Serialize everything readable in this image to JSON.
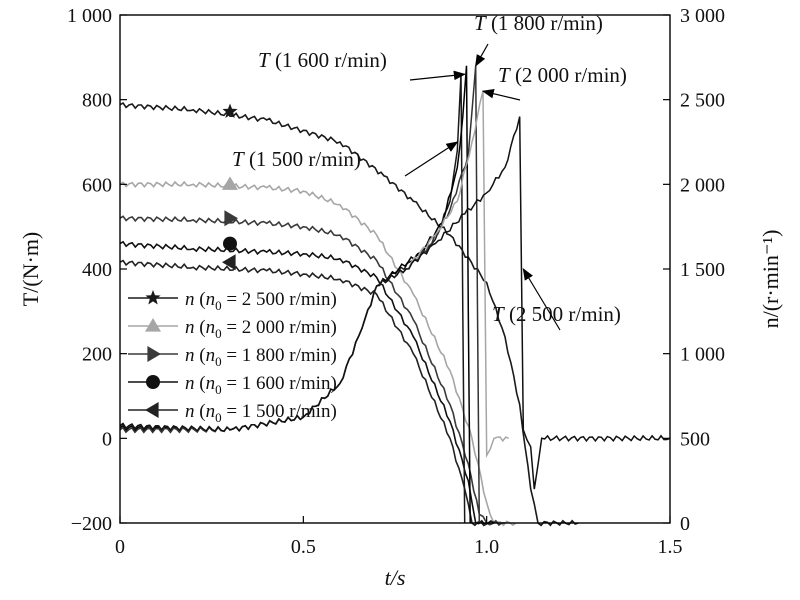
{
  "chart_data": {
    "type": "line",
    "xlabel": "t/s",
    "ylabel_left": "T/(N·m)",
    "ylabel_right": "n/(r·min⁻¹)",
    "xlim": [
      0,
      1.5
    ],
    "ylim_left": [
      -200,
      1000
    ],
    "ylim_right": [
      0,
      3000
    ],
    "x_ticks": [
      {
        "v": 0,
        "label": "0"
      },
      {
        "v": 0.5,
        "label": "0.5"
      },
      {
        "v": 1.0,
        "label": "1.0"
      },
      {
        "v": 1.5,
        "label": "1.5"
      }
    ],
    "y_left_ticks": [
      {
        "v": -200,
        "label": "−200"
      },
      {
        "v": 0,
        "label": "0"
      },
      {
        "v": 200,
        "label": "200"
      },
      {
        "v": 400,
        "label": "400"
      },
      {
        "v": 600,
        "label": "600"
      },
      {
        "v": 800,
        "label": "800"
      },
      {
        "v": 1000,
        "label": "1 000"
      }
    ],
    "y_right_ticks": [
      {
        "v": 0,
        "label": "0"
      },
      {
        "v": 500,
        "label": "500"
      },
      {
        "v": 1000,
        "label": "1 000"
      },
      {
        "v": 1500,
        "label": "1 500"
      },
      {
        "v": 2000,
        "label": "2 000"
      },
      {
        "v": 2500,
        "label": "2 500"
      },
      {
        "v": 3000,
        "label": "3 000"
      }
    ],
    "grid": false,
    "legend_position": "center-left",
    "speed_series": [
      {
        "name": "n (n0 = 2 500 r/min)",
        "label_parts": [
          "n",
          "n",
          "0",
          " = 2 500 r/min)"
        ],
        "marker": "star",
        "color": "#1a1a1a",
        "points": [
          [
            0,
            2470
          ],
          [
            0.2,
            2440
          ],
          [
            0.4,
            2380
          ],
          [
            0.6,
            2250
          ],
          [
            0.72,
            2050
          ],
          [
            0.8,
            1900
          ],
          [
            0.9,
            1700
          ],
          [
            1.0,
            1420
          ],
          [
            1.05,
            1100
          ],
          [
            1.09,
            700
          ],
          [
            1.12,
            200
          ],
          [
            1.14,
            0
          ],
          [
            1.25,
            0
          ]
        ]
      },
      {
        "name": "n (n0 = 2 000 r/min)",
        "label_parts": [
          "n",
          "n",
          "0",
          " = 2 000 r/min)"
        ],
        "marker": "triangle-up",
        "color": "#a6a6a6",
        "points": [
          [
            0,
            2000
          ],
          [
            0.2,
            2000
          ],
          [
            0.4,
            1980
          ],
          [
            0.5,
            1960
          ],
          [
            0.6,
            1880
          ],
          [
            0.7,
            1700
          ],
          [
            0.8,
            1350
          ],
          [
            0.9,
            900
          ],
          [
            0.96,
            500
          ],
          [
            1.0,
            120
          ],
          [
            1.02,
            0
          ],
          [
            1.08,
            0
          ]
        ]
      },
      {
        "name": "n (n0 = 1 800 r/min)",
        "label_parts": [
          "n",
          "n",
          "0",
          " = 1 800 r/min)"
        ],
        "marker": "triangle-right",
        "color": "#3a3a3a",
        "points": [
          [
            0,
            1800
          ],
          [
            0.2,
            1790
          ],
          [
            0.4,
            1770
          ],
          [
            0.5,
            1750
          ],
          [
            0.6,
            1700
          ],
          [
            0.7,
            1550
          ],
          [
            0.8,
            1200
          ],
          [
            0.9,
            700
          ],
          [
            0.95,
            350
          ],
          [
            0.98,
            50
          ],
          [
            1.0,
            0
          ],
          [
            1.05,
            0
          ]
        ]
      },
      {
        "name": "n (n0 = 1 600 r/min)",
        "label_parts": [
          "n",
          "n",
          "0",
          " = 1 600 r/min)"
        ],
        "marker": "circle",
        "color": "#111111",
        "points": [
          [
            0,
            1650
          ],
          [
            0.2,
            1620
          ],
          [
            0.4,
            1600
          ],
          [
            0.5,
            1590
          ],
          [
            0.6,
            1560
          ],
          [
            0.7,
            1450
          ],
          [
            0.8,
            1100
          ],
          [
            0.9,
            600
          ],
          [
            0.95,
            250
          ],
          [
            0.97,
            0
          ],
          [
            1.02,
            0
          ]
        ]
      },
      {
        "name": "n (n0 = 1 500 r/min)",
        "label_parts": [
          "n",
          "n",
          "0",
          " = 1 500 r/min)"
        ],
        "marker": "triangle-left",
        "color": "#222222",
        "points": [
          [
            0,
            1540
          ],
          [
            0.2,
            1510
          ],
          [
            0.4,
            1490
          ],
          [
            0.5,
            1470
          ],
          [
            0.6,
            1440
          ],
          [
            0.7,
            1350
          ],
          [
            0.8,
            1000
          ],
          [
            0.9,
            500
          ],
          [
            0.94,
            200
          ],
          [
            0.96,
            0
          ],
          [
            1.0,
            0
          ]
        ]
      }
    ],
    "torque_series": [
      {
        "name": "T (1 500 r/min)",
        "color": "#1a1a1a",
        "points": [
          [
            0,
            30
          ],
          [
            0.3,
            20
          ],
          [
            0.5,
            50
          ],
          [
            0.6,
            130
          ],
          [
            0.66,
            260
          ],
          [
            0.7,
            360
          ],
          [
            0.75,
            390
          ],
          [
            0.8,
            420
          ],
          [
            0.86,
            470
          ],
          [
            0.9,
            560
          ],
          [
            0.92,
            680
          ],
          [
            0.93,
            860
          ],
          [
            0.935,
            300
          ],
          [
            0.94,
            -200
          ]
        ]
      },
      {
        "name": "T (1 600 r/min)",
        "color": "#000000",
        "points": [
          [
            0,
            25
          ],
          [
            0.3,
            20
          ],
          [
            0.5,
            50
          ],
          [
            0.6,
            130
          ],
          [
            0.66,
            260
          ],
          [
            0.7,
            360
          ],
          [
            0.76,
            400
          ],
          [
            0.82,
            440
          ],
          [
            0.88,
            510
          ],
          [
            0.92,
            640
          ],
          [
            0.935,
            760
          ],
          [
            0.945,
            880
          ],
          [
            0.95,
            300
          ],
          [
            0.955,
            -200
          ]
        ]
      },
      {
        "name": "T (1 800 r/min)",
        "color": "#333333",
        "points": [
          [
            0,
            20
          ],
          [
            0.3,
            20
          ],
          [
            0.5,
            50
          ],
          [
            0.6,
            130
          ],
          [
            0.66,
            260
          ],
          [
            0.7,
            360
          ],
          [
            0.78,
            400
          ],
          [
            0.85,
            460
          ],
          [
            0.9,
            540
          ],
          [
            0.95,
            670
          ],
          [
            0.97,
            880
          ],
          [
            0.975,
            300
          ],
          [
            0.98,
            -200
          ]
        ]
      },
      {
        "name": "T (2 000 r/min)",
        "color": "#a6a6a6",
        "points": [
          [
            0,
            30
          ],
          [
            0.3,
            20
          ],
          [
            0.5,
            50
          ],
          [
            0.6,
            130
          ],
          [
            0.66,
            260
          ],
          [
            0.7,
            360
          ],
          [
            0.78,
            400
          ],
          [
            0.86,
            480
          ],
          [
            0.92,
            560
          ],
          [
            0.96,
            700
          ],
          [
            0.99,
            820
          ],
          [
            1.0,
            -40
          ],
          [
            1.02,
            0
          ],
          [
            1.06,
            0
          ]
        ]
      },
      {
        "name": "T (2 500 r/min)",
        "color": "#111111",
        "points": [
          [
            0,
            30
          ],
          [
            0.3,
            20
          ],
          [
            0.5,
            50
          ],
          [
            0.6,
            130
          ],
          [
            0.66,
            260
          ],
          [
            0.7,
            360
          ],
          [
            0.78,
            400
          ],
          [
            0.86,
            460
          ],
          [
            0.94,
            530
          ],
          [
            1.0,
            580
          ],
          [
            1.05,
            640
          ],
          [
            1.09,
            760
          ],
          [
            1.1,
            20
          ],
          [
            1.12,
            -20
          ],
          [
            1.13,
            -120
          ],
          [
            1.15,
            0
          ],
          [
            1.5,
            0
          ]
        ]
      }
    ],
    "annotations": [
      {
        "label": "T (1 500 r/min)",
        "italic": "T",
        "rest": " (1 500 r/min)",
        "arrow_to": [
          0.92,
          700
        ]
      },
      {
        "label": "T (1 600 r/min)",
        "italic": "T",
        "rest": " (1 600 r/min)",
        "arrow_to": [
          0.94,
          860
        ]
      },
      {
        "label": "T (1 800 r/min)",
        "italic": "T",
        "rest": " (1 800 r/min)",
        "arrow_to": [
          0.97,
          880
        ]
      },
      {
        "label": "T (2 000 r/min)",
        "italic": "T",
        "rest": " (2 000 r/min)",
        "arrow_to": [
          0.99,
          820
        ]
      },
      {
        "label": "T (2 500 r/min)",
        "italic": "T",
        "rest": " (2 500 r/min)",
        "arrow_to": [
          1.1,
          400
        ]
      }
    ]
  }
}
